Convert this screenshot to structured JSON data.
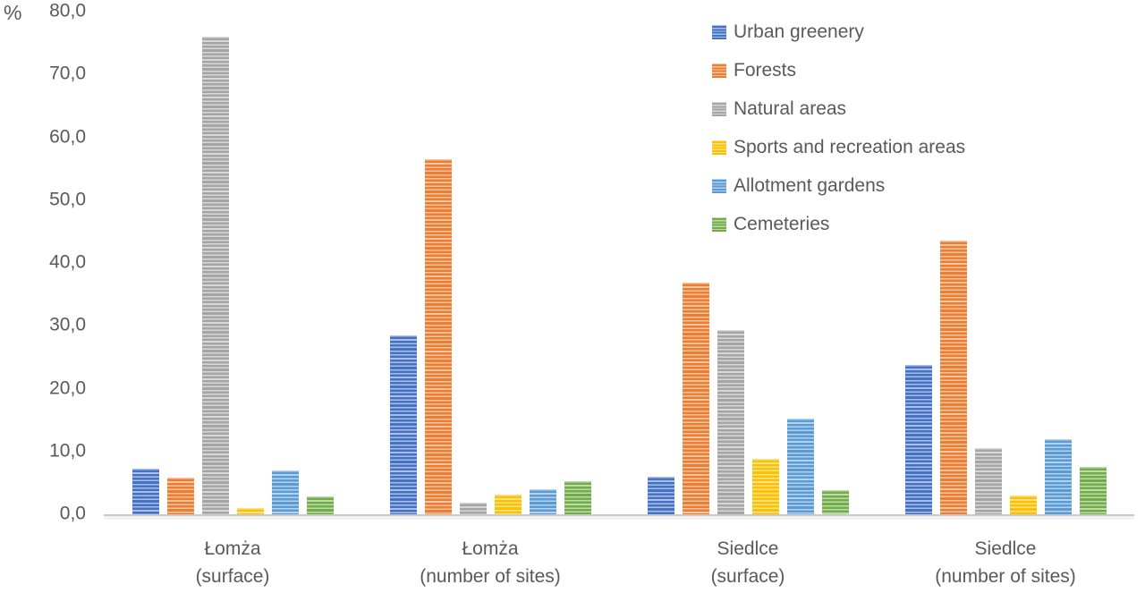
{
  "chart_data": {
    "type": "bar",
    "title": "",
    "ylabel": "%",
    "xlabel": "",
    "ylim": [
      0,
      80
    ],
    "ytick_step": 10,
    "ytick_labels_top_to_bottom": [
      "80,0",
      "70,0",
      "60,0",
      "50,0",
      "40,0",
      "30,0",
      "20,0",
      "10,0",
      "0,0"
    ],
    "grid": false,
    "legend_position": "top-right",
    "categories": [
      {
        "line1": "Łomża",
        "line2": "(surface)"
      },
      {
        "line1": "Łomża",
        "line2": "(number of sites)"
      },
      {
        "line1": "Siedlce",
        "line2": "(surface)"
      },
      {
        "line1": "Siedlce",
        "line2": "(number of sites)"
      }
    ],
    "series": [
      {
        "name": "Urban greenery",
        "color": "#4472C4",
        "values": [
          7.2,
          28.5,
          6.0,
          23.8
        ]
      },
      {
        "name": "Forests",
        "color": "#ED7D31",
        "values": [
          5.8,
          56.5,
          36.8,
          43.5
        ]
      },
      {
        "name": "Natural areas",
        "color": "#A5A5A5",
        "values": [
          76.0,
          1.8,
          29.3,
          10.5
        ]
      },
      {
        "name": "Sports and recreation areas",
        "color": "#FFC000",
        "values": [
          1.0,
          3.1,
          8.8,
          3.0
        ]
      },
      {
        "name": "Allotment gardens",
        "color": "#5B9BD5",
        "values": [
          7.0,
          4.0,
          15.2,
          12.0
        ]
      },
      {
        "name": "Cemeteries",
        "color": "#70AD47",
        "values": [
          2.9,
          5.3,
          3.9,
          7.5
        ]
      }
    ]
  }
}
